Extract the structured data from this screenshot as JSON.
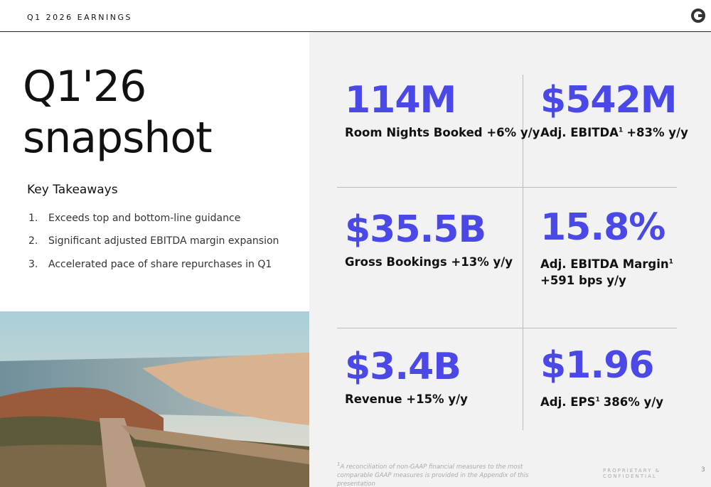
{
  "header": {
    "label": "Q1 2026 EARNINGS"
  },
  "title_lines": [
    "Q1'26",
    "snapshot"
  ],
  "takeaways": {
    "heading": "Key Takeaways",
    "items": [
      {
        "number": "1.",
        "text": "Exceeds top and bottom-line guidance"
      },
      {
        "number": "2.",
        "text": "Significant adjusted EBITDA margin expansion"
      },
      {
        "number": "3.",
        "text": "Accelerated pace of share repurchases in Q1"
      }
    ]
  },
  "metrics": [
    {
      "value": "114M",
      "label": "Room Nights Booked +6% y/y"
    },
    {
      "value": "$542M",
      "label": "Adj. EBITDA",
      "footnote": "1",
      "change": "+83% y/y"
    },
    {
      "value": "$35.5B",
      "label": "Gross Bookings +13% y/y"
    },
    {
      "value": "15.8%",
      "label": "Adj. EBITDA Margin",
      "footnote": "1",
      "change": "+591 bps y/y"
    },
    {
      "value": "$3.4B",
      "label": "Revenue +15% y/y"
    },
    {
      "value": "$1.96",
      "label": "Adj. EPS",
      "footnote": "1",
      "change": "386% y/y"
    }
  ],
  "footnote": {
    "marker": "1",
    "text": "A reconciliation of non-GAAP financial measures to the most comparable GAAP measures is provided in the Appendix of this presentation"
  },
  "footer": {
    "confidential": "PROPRIETARY & CONFIDENTIAL",
    "page": "3"
  }
}
